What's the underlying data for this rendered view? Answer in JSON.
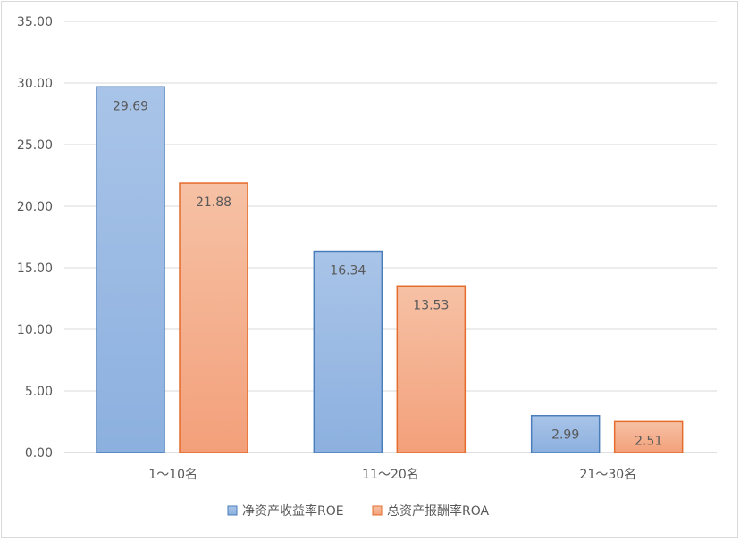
{
  "chart_data": {
    "type": "bar",
    "categories": [
      "1～10名",
      "11～20名",
      "21～30名"
    ],
    "series": [
      {
        "name": "净资产收益率ROE",
        "values": [
          29.69,
          16.34,
          2.99
        ],
        "color_top": "#a9c4e8",
        "color_bottom": "#8cb0df",
        "stroke": "#4a7ebb"
      },
      {
        "name": "总资产报酬率ROA",
        "values": [
          21.88,
          13.53,
          2.51
        ],
        "color_top": "#f6c1a5",
        "color_bottom": "#f3a07a",
        "stroke": "#e46c2c"
      }
    ],
    "data_labels": [
      [
        "29.69",
        "16.34",
        "2.99"
      ],
      [
        "21.88",
        "13.53",
        "2.51"
      ]
    ],
    "y_ticks": [
      "0.00",
      "5.00",
      "10.00",
      "15.00",
      "20.00",
      "25.00",
      "30.00",
      "35.00"
    ],
    "ylim": [
      0,
      35
    ],
    "grid": true,
    "legend_position": "bottom"
  }
}
